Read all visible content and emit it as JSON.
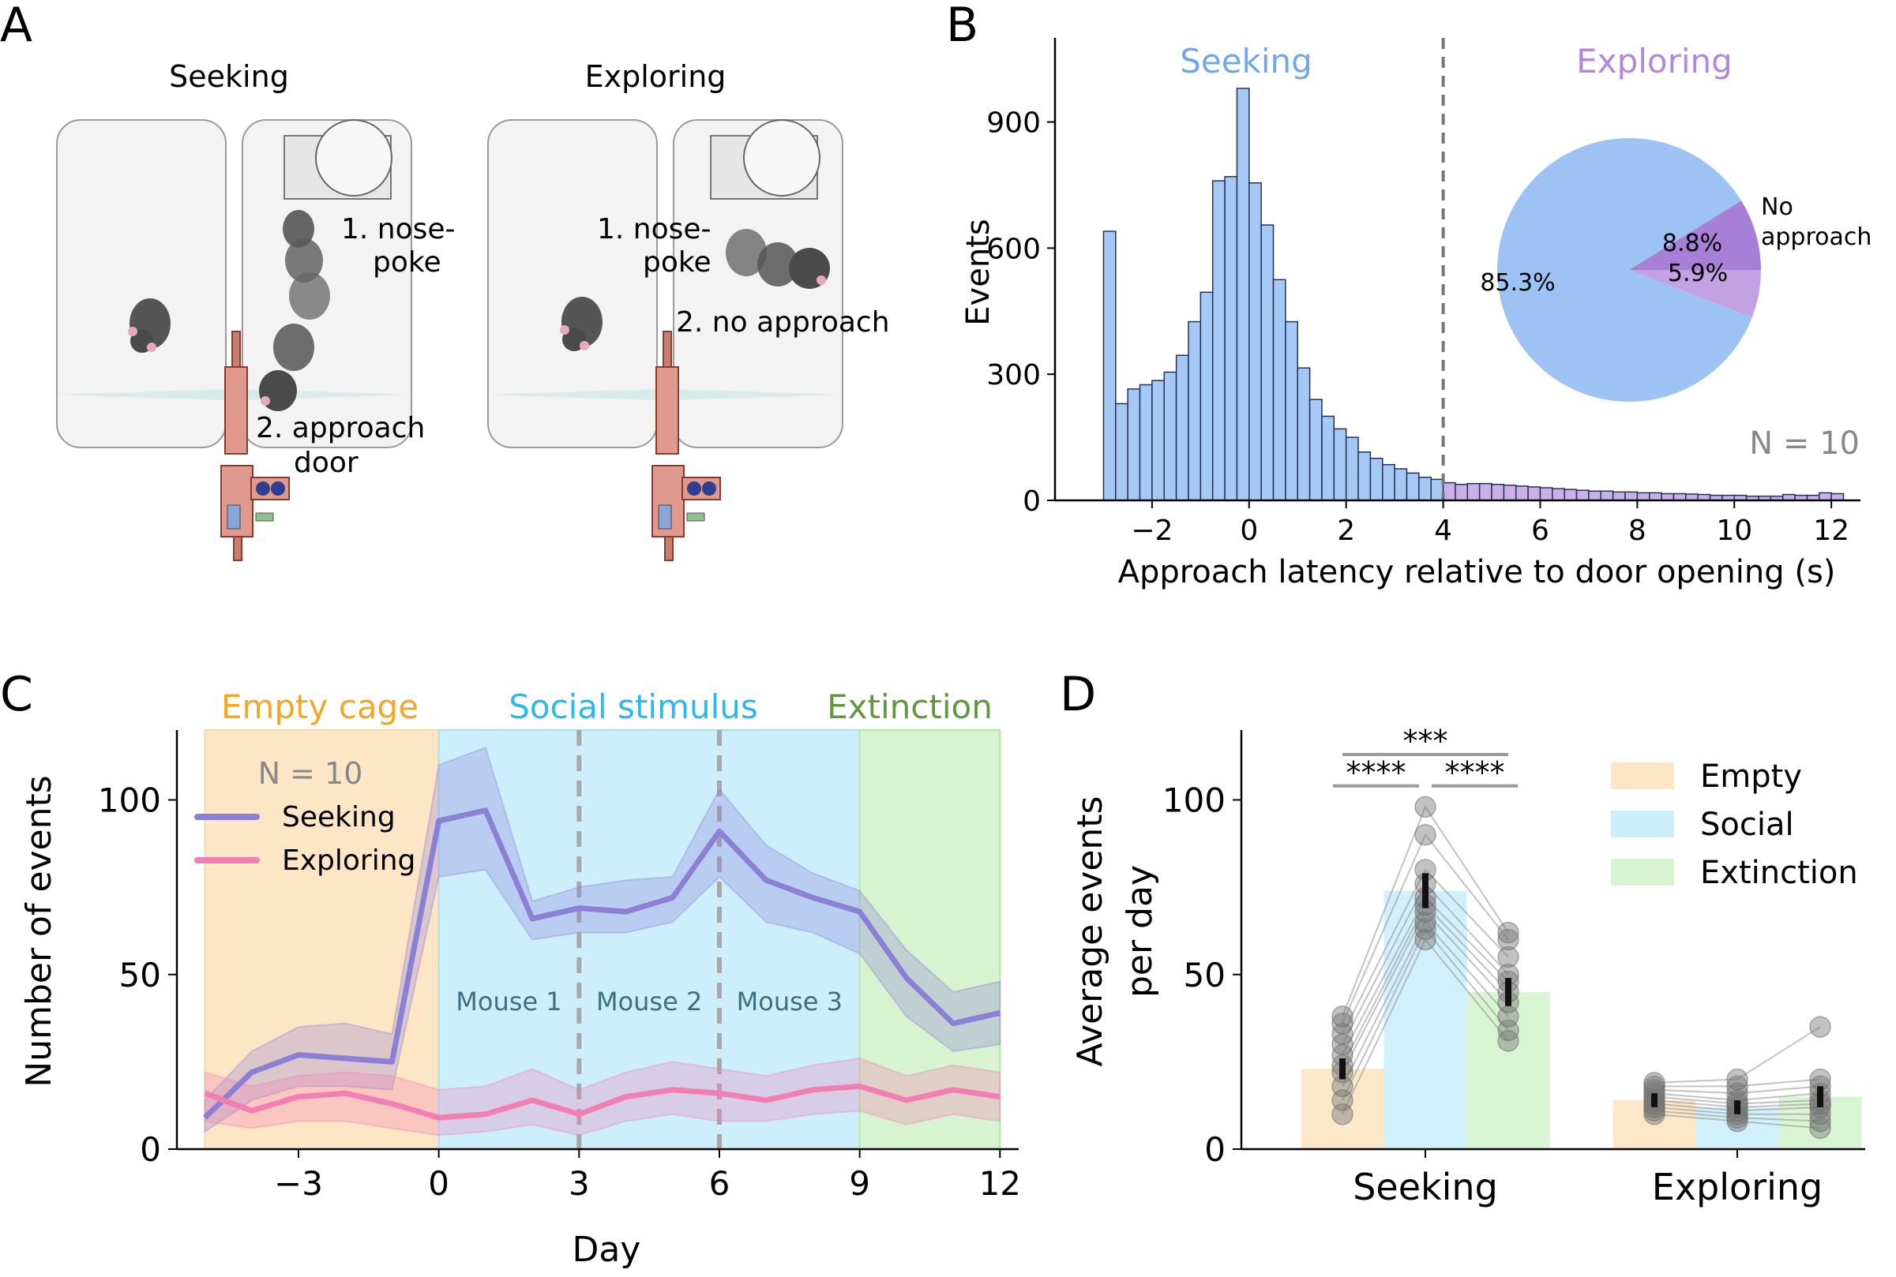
{
  "panel_letters": [
    "A",
    "B",
    "C",
    "D"
  ],
  "panel_a": {
    "seeking_title": "Seeking",
    "exploring_title": "Exploring",
    "seeking_step1": [
      "1. nose-",
      "poke"
    ],
    "seeking_step2": [
      "2. approach",
      "door"
    ],
    "exploring_step1": [
      "1. nose-",
      "poke"
    ],
    "exploring_step2": "2. no approach"
  },
  "colors": {
    "seeking": "#8b7fd6",
    "exploring": "#f27fb3",
    "hist_seeking": "#a5c8f4",
    "hist_exploring": "#cbb0e8",
    "pie_seeking": "#9cc3f4",
    "pie_mid": "#a77fd6",
    "pie_light": "#c3a2e4",
    "empty": "#fce6c6",
    "social": "#cdeffc",
    "extinction": "#d7f3d0",
    "empty_label": "#f5a623",
    "social_label": "#29b9ec",
    "extinction_label": "#5d9a3c"
  },
  "chart_data": [
    {
      "type": "bar",
      "id": "B",
      "xlabel": "Approach latency relative to door opening (s)",
      "ylabel": "Events",
      "xlim": [
        -4.0,
        12.6
      ],
      "ylim": [
        0,
        1100
      ],
      "xticks": [
        -2,
        0,
        2,
        4,
        6,
        8,
        10,
        12
      ],
      "xtick_labels": [
        "−2",
        "0",
        "2",
        "4",
        "6",
        "8",
        "10",
        "12"
      ],
      "yticks": [
        0,
        300,
        600,
        900
      ],
      "bin_start": -3.0,
      "bin_width": 0.25,
      "threshold": 4,
      "counts": [
        640,
        230,
        265,
        275,
        285,
        305,
        345,
        425,
        495,
        760,
        770,
        980,
        755,
        655,
        525,
        425,
        315,
        240,
        200,
        170,
        150,
        115,
        100,
        85,
        75,
        65,
        55,
        50,
        42,
        38,
        40,
        40,
        38,
        36,
        34,
        32,
        30,
        28,
        26,
        24,
        22,
        22,
        20,
        20,
        18,
        18,
        16,
        16,
        15,
        14,
        12,
        12,
        12,
        10,
        10,
        10,
        14,
        12,
        12,
        18,
        16
      ],
      "region_labels": [
        "Seeking",
        "Exploring"
      ],
      "annotation": "N = 10",
      "inset_pie": {
        "type": "pie",
        "values": [
          85.3,
          8.8,
          5.9
        ],
        "labels": [
          "85.3%",
          "8.8%",
          "5.9%"
        ],
        "outside_label": [
          "No",
          "approach"
        ]
      }
    },
    {
      "type": "line",
      "id": "C",
      "xlabel": "Day",
      "ylabel": "Number of events",
      "xlim": [
        -5.6,
        12.4
      ],
      "ylim": [
        0,
        120
      ],
      "xticks": [
        -3,
        0,
        3,
        6,
        9,
        12
      ],
      "xtick_labels": [
        "−3",
        "0",
        "3",
        "6",
        "9",
        "12"
      ],
      "yticks": [
        0,
        50,
        100
      ],
      "x": [
        -5,
        -4,
        -3,
        -2,
        -1,
        0,
        1,
        2,
        3,
        4,
        5,
        6,
        7,
        8,
        9,
        10,
        11,
        12
      ],
      "phases": [
        {
          "label": "Empty cage",
          "start": -5.0,
          "end": 0.0
        },
        {
          "label": "Social stimulus",
          "start": 0.0,
          "end": 9.0
        },
        {
          "label": "Extinction",
          "start": 9.0,
          "end": 12.0
        }
      ],
      "dividers": [
        3,
        6
      ],
      "stimulus_labels": [
        "Mouse 1",
        "Mouse 2",
        "Mouse 3"
      ],
      "annotation": "N = 10",
      "series": [
        {
          "name": "Seeking",
          "values": [
            9,
            22,
            27,
            26,
            25,
            94,
            97,
            66,
            69,
            68,
            72,
            91,
            77,
            72,
            68,
            49,
            36,
            39
          ],
          "lower": [
            5,
            14,
            18,
            18,
            17,
            78,
            80,
            60,
            62,
            62,
            65,
            78,
            65,
            62,
            56,
            38,
            28,
            30
          ],
          "upper": [
            14,
            28,
            35,
            36,
            33,
            110,
            115,
            71,
            75,
            77,
            78,
            103,
            87,
            79,
            74,
            57,
            45,
            48
          ]
        },
        {
          "name": "Exploring",
          "values": [
            16,
            11,
            15,
            16,
            13,
            9,
            10,
            14,
            10,
            15,
            17,
            16,
            14,
            17,
            18,
            14,
            17,
            15
          ],
          "lower": [
            8,
            6,
            8,
            8,
            6,
            4,
            5,
            7,
            4,
            8,
            10,
            8,
            8,
            10,
            11,
            7,
            10,
            8
          ],
          "upper": [
            22,
            18,
            21,
            22,
            21,
            17,
            18,
            23,
            17,
            22,
            25,
            23,
            21,
            24,
            26,
            21,
            24,
            22
          ]
        }
      ]
    },
    {
      "type": "bar",
      "id": "D",
      "ylabel": [
        "Average events",
        "per day"
      ],
      "ylim": [
        0,
        120
      ],
      "yticks": [
        0,
        50,
        100
      ],
      "categories": [
        "Seeking",
        "Exploring"
      ],
      "series": [
        {
          "name": "Empty",
          "values": [
            23,
            14
          ],
          "error": [
            3,
            2
          ]
        },
        {
          "name": "Social",
          "values": [
            74,
            12
          ],
          "error": [
            5,
            2
          ]
        },
        {
          "name": "Extinction",
          "values": [
            45,
            15
          ],
          "error": [
            4,
            3
          ]
        }
      ],
      "individual_points": [
        [
          [
            10,
            14,
            18,
            22,
            24,
            27,
            30,
            33,
            36,
            38
          ],
          [
            60,
            63,
            65,
            68,
            70,
            72,
            76,
            80,
            90,
            98
          ],
          [
            31,
            34,
            38,
            42,
            45,
            48,
            50,
            55,
            60,
            62
          ]
        ],
        [
          [
            10,
            11,
            12,
            13,
            14,
            15,
            16,
            17,
            18,
            19
          ],
          [
            8,
            9,
            10,
            11,
            12,
            13,
            14,
            16,
            18,
            20
          ],
          [
            6,
            8,
            10,
            12,
            13,
            14,
            16,
            18,
            20,
            35
          ]
        ]
      ],
      "significance": [
        {
          "label": "***",
          "from": 0,
          "to": 2,
          "y": 113
        },
        {
          "label": "****",
          "from": 0,
          "to": 1,
          "y": 104
        },
        {
          "label": "****",
          "from": 1,
          "to": 2,
          "y": 104
        }
      ]
    }
  ]
}
